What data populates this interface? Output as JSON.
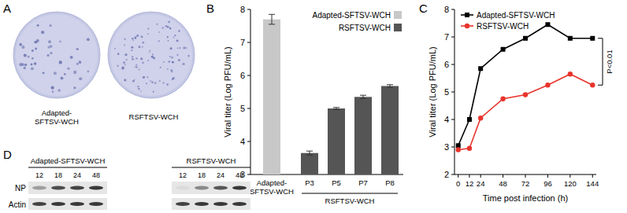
{
  "panel_labels": [
    "A",
    "B",
    "C",
    "D"
  ],
  "panel_a": {
    "images": [
      {
        "label": "Adapted-SFTSV-WCH"
      },
      {
        "label": "RSFTSV-WCH"
      }
    ]
  },
  "chart_data": [
    {
      "type": "bar",
      "ylabel": "Viral titer (Log PFU/mL)",
      "categories": [
        "Adapted-SFTSV-WCH",
        "P3",
        "P5",
        "P7",
        "P8"
      ],
      "x_group_label": "RSFTSV-WCH",
      "series": [
        {
          "name": "Adapted-SFTSV-WCH",
          "color": "#c8c8c8",
          "values": [
            7.7,
            null,
            null,
            null,
            null
          ],
          "errors": [
            0.15,
            null,
            null,
            null,
            null
          ]
        },
        {
          "name": "RSFTSV-WCH",
          "color": "#555555",
          "values": [
            null,
            3.65,
            5.0,
            5.35,
            5.68
          ],
          "errors": [
            null,
            0.06,
            0.03,
            0.05,
            0.04
          ]
        }
      ],
      "ylim": [
        3,
        8
      ],
      "yticks": [
        3,
        4,
        5,
        6,
        7,
        8
      ],
      "legend": "upper right"
    },
    {
      "type": "line",
      "xlabel": "Time post infection (h)",
      "ylabel": "Viral titer (Log PFU/mL)",
      "x": [
        0,
        12,
        24,
        48,
        72,
        96,
        120,
        144
      ],
      "series": [
        {
          "name": "Adapted-SFTSV-WCH",
          "color": "#000000",
          "marker": "square",
          "values": [
            3.05,
            4.0,
            5.85,
            6.55,
            6.95,
            7.45,
            6.95,
            6.95
          ]
        },
        {
          "name": "RSFTSV-WCH",
          "color": "#e8342c",
          "marker": "circle",
          "values": [
            2.9,
            2.95,
            4.05,
            4.75,
            4.9,
            5.25,
            5.65,
            5.25
          ]
        }
      ],
      "xlim": [
        -4,
        148
      ],
      "xticks": [
        0,
        12,
        24,
        48,
        72,
        96,
        120,
        144
      ],
      "ylim": [
        2,
        8
      ],
      "yticks": [
        2,
        3,
        4,
        5,
        6,
        7,
        8
      ],
      "legend": "upper left",
      "annotation": "P<0.01"
    }
  ],
  "panel_d": {
    "rows": [
      "NP",
      "Actin"
    ],
    "groups": [
      {
        "label": "Adapted-SFTSV-WCH",
        "times": [
          12,
          18,
          24,
          48
        ],
        "intensity": [
          [
            0.35,
            0.75,
            0.8,
            0.85
          ],
          [
            0.8,
            0.85,
            0.85,
            0.85
          ]
        ]
      },
      {
        "label": "RSFTSV-WCH",
        "times": [
          12,
          18,
          24,
          48
        ],
        "intensity": [
          [
            0.05,
            0.45,
            0.7,
            0.85
          ],
          [
            0.8,
            0.85,
            0.85,
            0.85
          ]
        ]
      }
    ]
  }
}
